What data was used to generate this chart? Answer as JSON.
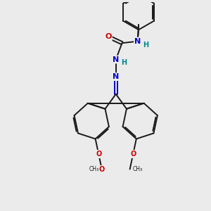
{
  "bg_color": "#ebebeb",
  "bond_color": "#1a1a1a",
  "N_color": "#0000cc",
  "O_color": "#cc0000",
  "H_color": "#008888",
  "line_width": 1.4,
  "fig_width": 3.0,
  "fig_height": 3.0,
  "dpi": 100,
  "xlim": [
    0,
    10
  ],
  "ylim": [
    0,
    10
  ]
}
